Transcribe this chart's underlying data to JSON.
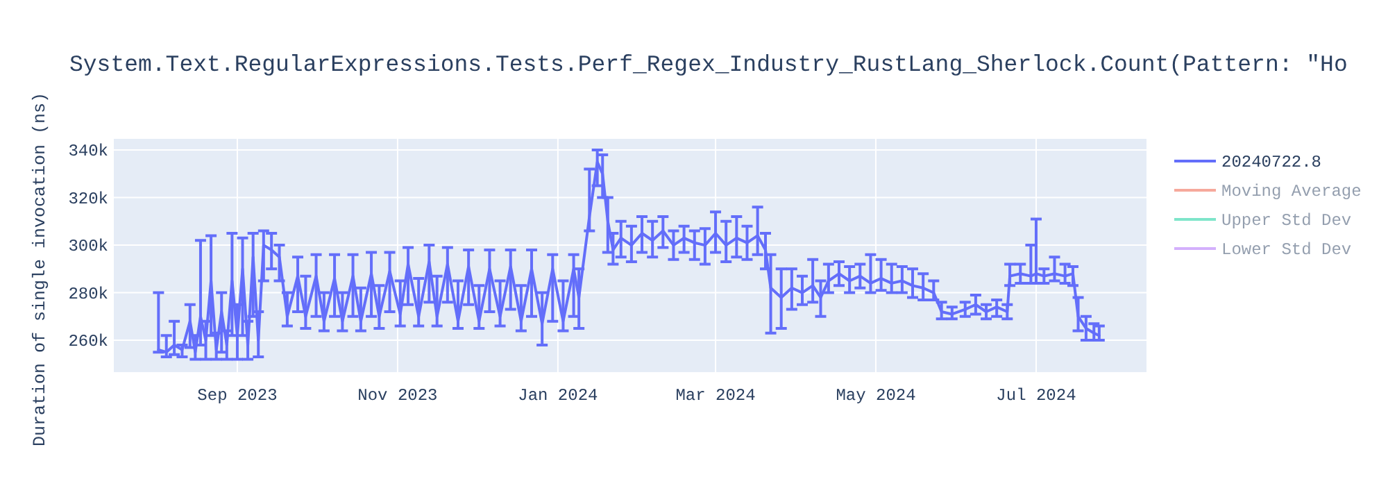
{
  "chart_data": {
    "type": "line",
    "title": "System.Text.RegularExpressions.Tests.Perf_Regex_Industry_RustLang_Sherlock.Count(Pattern: \"Ho",
    "ylabel": "Duration of single invocation (ns)",
    "xlim": [
      "2023-07-16",
      "2024-08-12"
    ],
    "xticks": [
      {
        "value": "2023-09-01",
        "label": "Sep 2023"
      },
      {
        "value": "2023-11-01",
        "label": "Nov 2023"
      },
      {
        "value": "2024-01-01",
        "label": "Jan 2024"
      },
      {
        "value": "2024-03-01",
        "label": "Mar 2024"
      },
      {
        "value": "2024-05-01",
        "label": "May 2024"
      },
      {
        "value": "2024-07-01",
        "label": "Jul 2024"
      }
    ],
    "ylim": [
      246600,
      344700
    ],
    "yticks": [
      {
        "value": 260000,
        "label": "260k"
      },
      {
        "value": 280000,
        "label": "280k"
      },
      {
        "value": 300000,
        "label": "300k"
      },
      {
        "value": 320000,
        "label": "320k"
      },
      {
        "value": 340000,
        "label": "340k"
      }
    ],
    "grid": true,
    "legend": "right",
    "x": [
      "2023-08-02",
      "2023-08-05",
      "2023-08-08",
      "2023-08-11",
      "2023-08-14",
      "2023-08-16",
      "2023-08-18",
      "2023-08-20",
      "2023-08-22",
      "2023-08-24",
      "2023-08-26",
      "2023-08-28",
      "2023-08-30",
      "2023-09-01",
      "2023-09-03",
      "2023-09-05",
      "2023-09-07",
      "2023-09-09",
      "2023-09-11",
      "2023-09-14",
      "2023-09-17",
      "2023-09-20",
      "2023-09-24",
      "2023-09-27",
      "2023-10-01",
      "2023-10-04",
      "2023-10-08",
      "2023-10-11",
      "2023-10-15",
      "2023-10-18",
      "2023-10-22",
      "2023-10-25",
      "2023-10-29",
      "2023-11-02",
      "2023-11-05",
      "2023-11-09",
      "2023-11-13",
      "2023-11-16",
      "2023-11-20",
      "2023-11-24",
      "2023-11-28",
      "2023-12-02",
      "2023-12-06",
      "2023-12-10",
      "2023-12-14",
      "2023-12-18",
      "2023-12-22",
      "2023-12-26",
      "2023-12-30",
      "2024-01-03",
      "2024-01-07",
      "2024-01-09",
      "2024-01-13",
      "2024-01-16",
      "2024-01-18",
      "2024-01-20",
      "2024-01-22",
      "2024-01-25",
      "2024-01-29",
      "2024-02-02",
      "2024-02-06",
      "2024-02-10",
      "2024-02-14",
      "2024-02-18",
      "2024-02-22",
      "2024-02-26",
      "2024-03-01",
      "2024-03-05",
      "2024-03-09",
      "2024-03-13",
      "2024-03-17",
      "2024-03-20",
      "2024-03-22",
      "2024-03-26",
      "2024-03-30",
      "2024-04-03",
      "2024-04-07",
      "2024-04-10",
      "2024-04-13",
      "2024-04-17",
      "2024-04-21",
      "2024-04-25",
      "2024-04-29",
      "2024-05-03",
      "2024-05-07",
      "2024-05-11",
      "2024-05-15",
      "2024-05-19",
      "2024-05-23",
      "2024-05-26",
      "2024-05-30",
      "2024-06-04",
      "2024-06-08",
      "2024-06-12",
      "2024-06-16",
      "2024-06-20",
      "2024-06-21",
      "2024-06-25",
      "2024-06-29",
      "2024-07-01",
      "2024-07-04",
      "2024-07-08",
      "2024-07-12",
      "2024-07-15",
      "2024-07-17",
      "2024-07-20",
      "2024-07-23",
      "2024-07-25"
    ],
    "series": [
      {
        "name": "20240722.8",
        "color": "#636efa",
        "values": [
          256000,
          255000,
          258000,
          256000,
          268000,
          255000,
          270000,
          260000,
          285000,
          256000,
          272000,
          258000,
          285000,
          262000,
          290000,
          258000,
          295000,
          260000,
          300000,
          298000,
          295000,
          270000,
          287000,
          270000,
          287000,
          268000,
          286000,
          268000,
          287000,
          268000,
          288000,
          270000,
          289000,
          271000,
          292000,
          270000,
          293000,
          270000,
          292000,
          268000,
          291000,
          268000,
          290000,
          270000,
          291000,
          268000,
          290000,
          267000,
          290000,
          268000,
          290000,
          278000,
          312000,
          335000,
          330000,
          310000,
          298000,
          303000,
          300000,
          305000,
          302000,
          306000,
          300000,
          303000,
          301000,
          300000,
          305000,
          300000,
          303000,
          301000,
          304000,
          298000,
          282000,
          278000,
          282000,
          280000,
          283000,
          278000,
          285000,
          288000,
          285000,
          287000,
          284000,
          286000,
          284000,
          285000,
          283000,
          282000,
          280000,
          272000,
          271000,
          273000,
          275000,
          272000,
          274000,
          272000,
          287000,
          288000,
          287000,
          288000,
          287000,
          288000,
          287000,
          288000,
          270000,
          265000,
          263000,
          262000
        ],
        "errors": [
          [
            255000,
            280000
          ],
          [
            253000,
            262000
          ],
          [
            254000,
            268000
          ],
          [
            253000,
            258000
          ],
          [
            257000,
            275000
          ],
          [
            252000,
            262000
          ],
          [
            258000,
            302000
          ],
          [
            252000,
            268000
          ],
          [
            262000,
            304000
          ],
          [
            252000,
            263000
          ],
          [
            255000,
            280000
          ],
          [
            252000,
            264000
          ],
          [
            262000,
            305000
          ],
          [
            252000,
            275000
          ],
          [
            262000,
            303000
          ],
          [
            252000,
            268000
          ],
          [
            270000,
            305000
          ],
          [
            253000,
            272000
          ],
          [
            285000,
            306000
          ],
          [
            290000,
            305000
          ],
          [
            285000,
            300000
          ],
          [
            266000,
            280000
          ],
          [
            272000,
            295000
          ],
          [
            265000,
            287000
          ],
          [
            270000,
            296000
          ],
          [
            264000,
            280000
          ],
          [
            270000,
            296000
          ],
          [
            264000,
            280000
          ],
          [
            270000,
            296000
          ],
          [
            264000,
            282000
          ],
          [
            270000,
            297000
          ],
          [
            265000,
            283000
          ],
          [
            272000,
            297000
          ],
          [
            266000,
            285000
          ],
          [
            275000,
            299000
          ],
          [
            266000,
            286000
          ],
          [
            276000,
            300000
          ],
          [
            266000,
            287000
          ],
          [
            276000,
            299000
          ],
          [
            265000,
            285000
          ],
          [
            275000,
            298000
          ],
          [
            265000,
            283000
          ],
          [
            272000,
            298000
          ],
          [
            266000,
            285000
          ],
          [
            273000,
            298000
          ],
          [
            264000,
            283000
          ],
          [
            270000,
            298000
          ],
          [
            258000,
            280000
          ],
          [
            268000,
            296000
          ],
          [
            264000,
            285000
          ],
          [
            270000,
            296000
          ],
          [
            265000,
            290000
          ],
          [
            306000,
            332000
          ],
          [
            325000,
            340000
          ],
          [
            320000,
            338000
          ],
          [
            297000,
            320000
          ],
          [
            292000,
            305000
          ],
          [
            295000,
            310000
          ],
          [
            293000,
            308000
          ],
          [
            297000,
            312000
          ],
          [
            295000,
            310000
          ],
          [
            299000,
            312000
          ],
          [
            294000,
            306000
          ],
          [
            297000,
            308000
          ],
          [
            294000,
            306000
          ],
          [
            292000,
            307000
          ],
          [
            297000,
            314000
          ],
          [
            293000,
            310000
          ],
          [
            295000,
            312000
          ],
          [
            294000,
            308000
          ],
          [
            296000,
            316000
          ],
          [
            290000,
            305000
          ],
          [
            263000,
            296000
          ],
          [
            265000,
            290000
          ],
          [
            273000,
            290000
          ],
          [
            275000,
            287000
          ],
          [
            276000,
            294000
          ],
          [
            270000,
            285000
          ],
          [
            280000,
            292000
          ],
          [
            283000,
            293000
          ],
          [
            280000,
            291000
          ],
          [
            282000,
            292000
          ],
          [
            280000,
            296000
          ],
          [
            281000,
            294000
          ],
          [
            280000,
            292000
          ],
          [
            280000,
            291000
          ],
          [
            278000,
            290000
          ],
          [
            277000,
            288000
          ],
          [
            277000,
            285000
          ],
          [
            269000,
            276000
          ],
          [
            269000,
            274000
          ],
          [
            270000,
            276000
          ],
          [
            271000,
            279000
          ],
          [
            269000,
            275000
          ],
          [
            270000,
            277000
          ],
          [
            269000,
            275000
          ],
          [
            283000,
            292000
          ],
          [
            284000,
            292000
          ],
          [
            284000,
            300000
          ],
          [
            284000,
            311000
          ],
          [
            284000,
            290000
          ],
          [
            285000,
            295000
          ],
          [
            284000,
            292000
          ],
          [
            283000,
            291000
          ],
          [
            264000,
            278000
          ],
          [
            260000,
            270000
          ],
          [
            260000,
            267000
          ],
          [
            260000,
            266000
          ]
        ]
      },
      {
        "name": "Moving Average",
        "color": "#ef553b",
        "values": [
          null,
          null,
          null,
          null,
          null,
          null,
          null,
          null,
          null,
          null,
          null,
          null,
          null,
          null,
          null,
          null,
          null,
          null,
          null,
          null,
          null,
          null,
          null,
          null,
          null,
          null,
          null,
          null,
          null,
          null,
          null,
          null,
          null,
          null,
          null,
          null,
          null,
          null,
          null,
          null,
          null,
          null,
          null,
          null,
          null,
          null,
          null,
          null,
          null,
          null,
          null,
          null,
          null,
          null,
          null,
          null,
          null,
          null,
          null,
          null,
          null,
          null,
          null,
          null,
          null,
          null,
          null,
          null,
          null,
          null,
          null,
          null,
          null,
          null,
          null,
          null,
          null,
          null,
          null,
          null,
          null,
          null,
          null,
          null,
          null,
          null,
          null,
          null,
          null,
          null,
          null,
          null,
          null,
          null,
          null,
          null,
          null,
          null,
          null,
          null,
          null,
          null,
          null,
          null,
          null,
          null,
          null,
          null
        ]
      },
      {
        "name": "Upper Std Dev",
        "color": "#00cc96",
        "values": [
          null,
          null,
          null,
          null,
          null,
          null,
          null,
          null,
          null,
          null,
          null,
          null,
          null,
          null,
          null,
          null,
          null,
          null,
          null,
          null,
          null,
          null,
          null,
          null,
          null,
          null,
          null,
          null,
          null,
          null,
          null,
          null,
          null,
          null,
          null,
          null,
          null,
          null,
          null,
          null,
          null,
          null,
          null,
          null,
          null,
          null,
          null,
          null,
          null,
          null,
          null,
          null,
          null,
          null,
          null,
          null,
          null,
          null,
          null,
          null,
          null,
          null,
          null,
          null,
          null,
          null,
          null,
          null,
          null,
          null,
          null,
          null,
          null,
          null,
          null,
          null,
          null,
          null,
          null,
          null,
          null,
          null,
          null,
          null,
          null,
          null,
          null,
          null,
          null,
          null,
          null,
          null,
          null,
          null,
          null,
          null,
          null,
          null,
          null,
          null,
          null,
          null,
          null,
          null,
          null,
          null,
          null,
          null
        ]
      },
      {
        "name": "Lower Std Dev",
        "color": "#ab63fa",
        "values": [
          null,
          null,
          null,
          null,
          null,
          null,
          null,
          null,
          null,
          null,
          null,
          null,
          null,
          null,
          null,
          null,
          null,
          null,
          null,
          null,
          null,
          null,
          null,
          null,
          null,
          null,
          null,
          null,
          null,
          null,
          null,
          null,
          null,
          null,
          null,
          null,
          null,
          null,
          null,
          null,
          null,
          null,
          null,
          null,
          null,
          null,
          null,
          null,
          null,
          null,
          null,
          null,
          null,
          null,
          null,
          null,
          null,
          null,
          null,
          null,
          null,
          null,
          null,
          null,
          null,
          null,
          null,
          null,
          null,
          null,
          null,
          null,
          null,
          null,
          null,
          null,
          null,
          null,
          null,
          null,
          null,
          null,
          null,
          null,
          null,
          null,
          null,
          null,
          null,
          null,
          null,
          null,
          null,
          null,
          null,
          null,
          null,
          null,
          null,
          null,
          null,
          null,
          null,
          null,
          null,
          null,
          null,
          null
        ]
      }
    ]
  }
}
